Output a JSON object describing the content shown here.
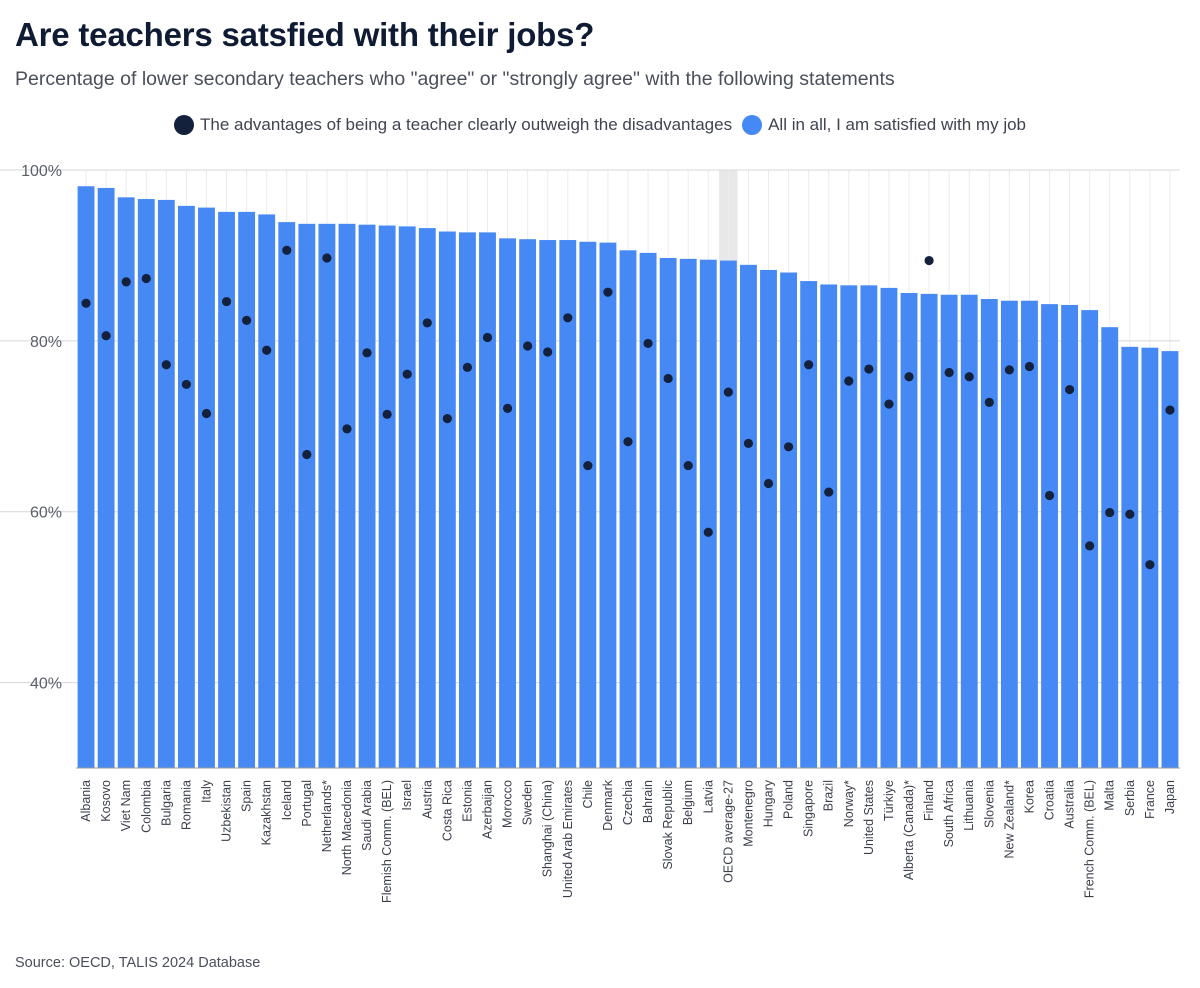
{
  "header": {
    "title": "Are teachers satsfied with their jobs?",
    "subtitle": "Percentage of lower secondary teachers who \"agree\" or \"strongly agree\" with the following statements"
  },
  "footer": {
    "source": "Source: OECD, TALIS 2024 Database"
  },
  "colors": {
    "bar": "#4689f4",
    "dot": "#14213d",
    "highlight": "#e8e8e8",
    "grid": "#d7d7d7",
    "axis": "#9a9a9a"
  },
  "chart_data": {
    "type": "bar",
    "title": "Are teachers satsfied with their jobs?",
    "subtitle": "Percentage of lower secondary teachers who \"agree\" or \"strongly agree\" with the following statements",
    "ylim": [
      30,
      100
    ],
    "yticks": [
      40,
      60,
      80,
      100
    ],
    "ytick_labels": [
      "40%",
      "60%",
      "80%",
      "100%"
    ],
    "grid": true,
    "legend_position": "top-center",
    "highlight_category": "OECD average-27",
    "categories": [
      "Albania",
      "Kosovo",
      "Viet Nam",
      "Colombia",
      "Bulgaria",
      "Romania",
      "Italy",
      "Uzbekistan",
      "Spain",
      "Kazakhstan",
      "Iceland",
      "Portugal",
      "Netherlands*",
      "North Macedonia",
      "Saudi Arabia",
      "Flemish Comm. (BEL)",
      "Israel",
      "Austria",
      "Costa Rica",
      "Estonia",
      "Azerbaijan",
      "Morocco",
      "Sweden",
      "Shanghai (China)",
      "United Arab Emirates",
      "Chile",
      "Denmark",
      "Czechia",
      "Bahrain",
      "Slovak Republic",
      "Belgium",
      "Latvia",
      "OECD average-27",
      "Montenegro",
      "Hungary",
      "Poland",
      "Singapore",
      "Brazil",
      "Norway*",
      "United States",
      "Türkiye",
      "Alberta (Canada)*",
      "Finland",
      "South Africa",
      "Lithuania",
      "Slovenia",
      "New Zealand*",
      "Korea",
      "Croatia",
      "Australia",
      "French Comm. (BEL)",
      "Malta",
      "Serbia",
      "France",
      "Japan"
    ],
    "series": [
      {
        "name": "All in all, I am satisfied with my job",
        "style": "bar",
        "values": [
          98.1,
          97.9,
          96.8,
          96.6,
          96.5,
          95.8,
          95.6,
          95.1,
          95.1,
          94.8,
          93.9,
          93.7,
          93.7,
          93.7,
          93.6,
          93.5,
          93.4,
          93.2,
          92.8,
          92.7,
          92.7,
          92.0,
          91.9,
          91.8,
          91.8,
          91.6,
          91.5,
          90.6,
          90.3,
          89.7,
          89.6,
          89.5,
          89.4,
          88.9,
          88.3,
          88.0,
          87.0,
          86.6,
          86.5,
          86.5,
          86.2,
          85.6,
          85.5,
          85.4,
          85.4,
          84.9,
          84.7,
          84.7,
          84.3,
          84.2,
          83.6,
          81.6,
          79.3,
          79.2,
          78.8
        ]
      },
      {
        "name": "The advantages of being a teacher clearly outweigh the disadvantages",
        "style": "dot",
        "values": [
          84.4,
          80.6,
          86.9,
          87.3,
          77.2,
          74.9,
          71.5,
          84.6,
          82.4,
          78.9,
          90.6,
          66.7,
          89.7,
          69.7,
          78.6,
          71.4,
          76.1,
          82.1,
          70.9,
          76.9,
          80.4,
          72.1,
          79.4,
          78.7,
          82.7,
          65.4,
          85.7,
          68.2,
          79.7,
          75.6,
          65.4,
          57.6,
          74.0,
          68.0,
          63.3,
          67.6,
          77.2,
          62.3,
          75.3,
          76.7,
          72.6,
          75.8,
          89.4,
          76.3,
          75.8,
          72.8,
          76.6,
          77.0,
          61.9,
          74.3,
          56.0,
          59.9,
          59.7,
          53.8,
          71.9
        ]
      }
    ]
  }
}
